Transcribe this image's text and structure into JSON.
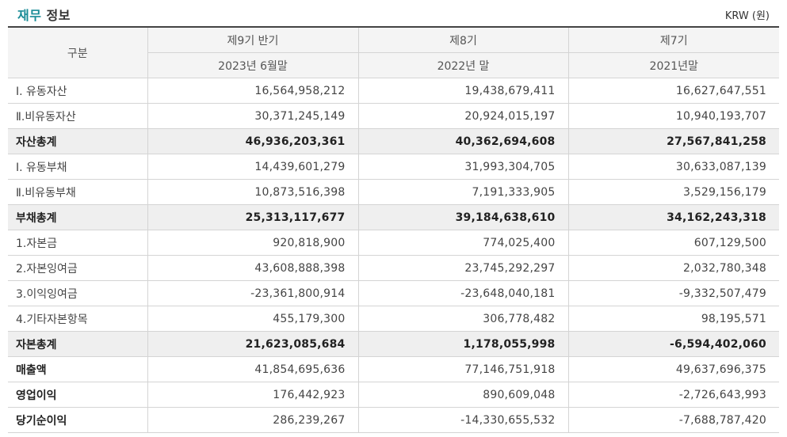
{
  "header": {
    "title_accent": "재무",
    "title_rest": "정보",
    "unit": "KRW (원)"
  },
  "table": {
    "corner": "구분",
    "periods": [
      {
        "label": "제9기 반기",
        "date": "2023년 6월말"
      },
      {
        "label": "제8기",
        "date": "2022년 말"
      },
      {
        "label": "제7기",
        "date": "2021년말"
      }
    ],
    "rows": [
      {
        "label": "Ⅰ. 유동자산",
        "values": [
          "16,564,958,212",
          "19,438,679,411",
          "16,627,647,551"
        ]
      },
      {
        "label": "Ⅱ.비유동자산",
        "values": [
          "30,371,245,149",
          "20,924,015,197",
          "10,940,193,707"
        ]
      },
      {
        "label": "자산총계",
        "values": [
          "46,936,203,361",
          "40,362,694,608",
          "27,567,841,258"
        ]
      },
      {
        "label": "Ⅰ. 유동부채",
        "values": [
          "14,439,601,279",
          "31,993,304,705",
          "30,633,087,139"
        ]
      },
      {
        "label": "Ⅱ.비유동부채",
        "values": [
          "10,873,516,398",
          "7,191,333,905",
          "3,529,156,179"
        ]
      },
      {
        "label": "부채총계",
        "values": [
          "25,313,117,677",
          "39,184,638,610",
          "34,162,243,318"
        ]
      },
      {
        "label": "1.자본금",
        "values": [
          "920,818,900",
          "774,025,400",
          "607,129,500"
        ]
      },
      {
        "label": "2.자본잉여금",
        "values": [
          "43,608,888,398",
          "23,745,292,297",
          "2,032,780,348"
        ]
      },
      {
        "label": "3.이익잉여금",
        "values": [
          "-23,361,800,914",
          "-23,648,040,181",
          "-9,332,507,479"
        ]
      },
      {
        "label": "4.기타자본항목",
        "values": [
          "455,179,300",
          "306,778,482",
          "98,195,571"
        ]
      },
      {
        "label": "자본총계",
        "values": [
          "21,623,085,684",
          "1,178,055,998",
          "-6,594,402,060"
        ]
      },
      {
        "label": "매출액",
        "values": [
          "41,854,695,636",
          "77,146,751,918",
          "49,637,696,375"
        ]
      },
      {
        "label": "영업이익",
        "values": [
          "176,442,923",
          "890,609,048",
          "-2,726,643,993"
        ]
      },
      {
        "label": "당기순이익",
        "values": [
          "286,239,267",
          "-14,330,655,532",
          "-7,688,787,420"
        ]
      }
    ]
  }
}
